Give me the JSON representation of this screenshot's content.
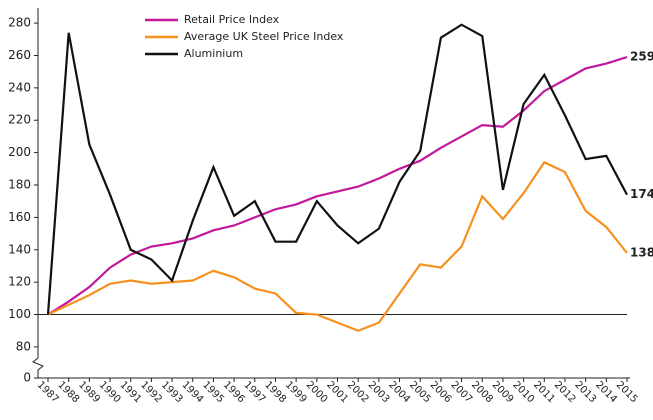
{
  "chart_data": {
    "type": "line",
    "x": [
      "1987",
      "1988",
      "1989",
      "1990",
      "1991",
      "1992",
      "1993",
      "1994",
      "1995",
      "1996",
      "1997",
      "1998",
      "1999",
      "2000",
      "2001",
      "2002",
      "2003",
      "2004",
      "2005",
      "2006",
      "2007",
      "2008",
      "2009",
      "2010",
      "2011",
      "2012",
      "2013",
      "2014",
      "2015"
    ],
    "series": [
      {
        "name": "Retail Price Index",
        "color": "#c2189b",
        "values": [
          100,
          108,
          117,
          129,
          137,
          142,
          144,
          147,
          152,
          155,
          160,
          165,
          168,
          173,
          176,
          179,
          184,
          190,
          195,
          203,
          210,
          217,
          216,
          226,
          238,
          245,
          252,
          255,
          259
        ],
        "end_label": true
      },
      {
        "name": "Average UK Steel Price Index",
        "color": "#f7901e",
        "values": [
          100,
          106,
          112,
          119,
          121,
          119,
          120,
          121,
          127,
          123,
          116,
          113,
          101,
          100,
          95,
          90,
          95,
          113,
          131,
          129,
          142,
          173,
          159,
          175,
          194,
          188,
          164,
          154,
          138
        ],
        "end_label": true
      },
      {
        "name": "Aluminium",
        "color": "#111111",
        "values": [
          100,
          274,
          205,
          174,
          140,
          134,
          121,
          158,
          191,
          161,
          170,
          145,
          145,
          170,
          155,
          144,
          153,
          182,
          201,
          271,
          279,
          272,
          177,
          230,
          248,
          223,
          196,
          198,
          174
        ],
        "end_label": true
      }
    ],
    "ylim": [
      0,
      285
    ],
    "y_break": [
      0,
      75
    ],
    "yticks": [
      0,
      80,
      100,
      120,
      140,
      160,
      180,
      200,
      220,
      240,
      260,
      280
    ],
    "reference_line": 100,
    "legend": "top"
  }
}
